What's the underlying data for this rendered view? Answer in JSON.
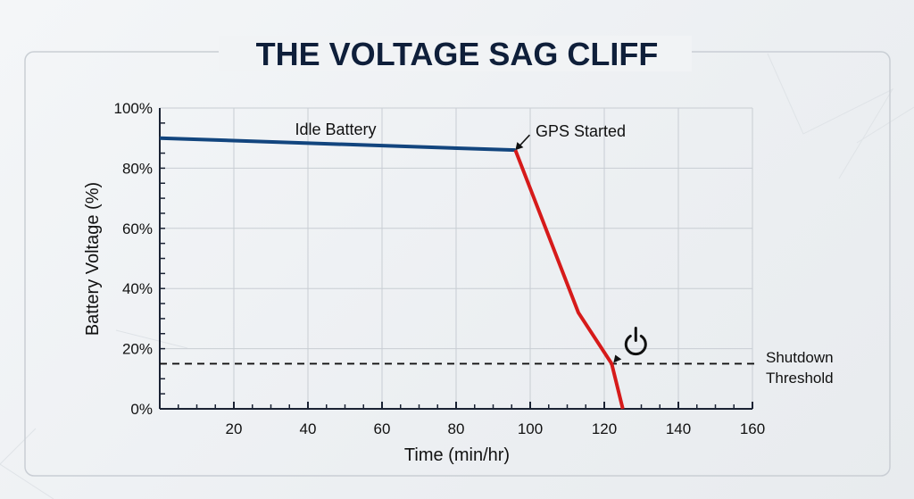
{
  "chart_data": {
    "type": "line",
    "title": "THE VOLTAGE SAG CLIFF",
    "xlabel": "Time (min/hr)",
    "ylabel": "Battery Voltage (%)",
    "xlim": [
      0,
      160
    ],
    "ylim": [
      0,
      100
    ],
    "x_ticks": [
      20,
      40,
      60,
      80,
      100,
      120,
      140,
      160
    ],
    "y_ticks": [
      "0%",
      "20%",
      "40%",
      "60%",
      "80%",
      "100%"
    ],
    "y_tick_values": [
      0,
      20,
      40,
      60,
      80,
      100
    ],
    "grid": true,
    "series": [
      {
        "name": "Idle Battery",
        "color": "#12457e",
        "points": [
          [
            0,
            90
          ],
          [
            96,
            86
          ]
        ]
      },
      {
        "color": "#d61a1a",
        "points": [
          [
            96,
            86
          ],
          [
            113,
            32
          ],
          [
            122,
            15
          ],
          [
            125,
            0
          ]
        ]
      }
    ],
    "threshold": {
      "value": 15,
      "label_line1": "Shutdown",
      "label_line2": "Threshold"
    },
    "annotations": {
      "gps_started": {
        "text": "GPS Started",
        "x": 96,
        "y": 86
      },
      "shutdown_point": {
        "icon": "power-icon",
        "x": 122,
        "y": 15
      }
    }
  }
}
